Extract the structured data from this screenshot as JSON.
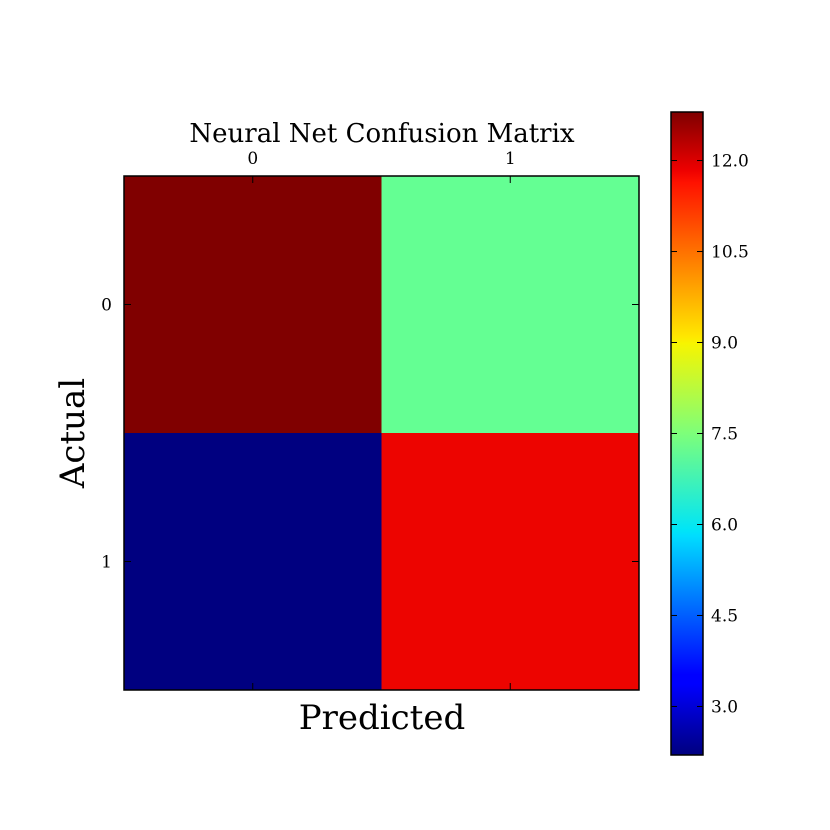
{
  "chart_data": {
    "type": "heatmap",
    "title": "Neural Net Confusion Matrix",
    "xlabel": "Predicted",
    "ylabel": "Actual",
    "x_categories": [
      "0",
      "1"
    ],
    "y_categories": [
      "0",
      "1"
    ],
    "values": [
      [
        12.8,
        7.2
      ],
      [
        2.2,
        11.8
      ]
    ],
    "colormap": "jet",
    "color_range": [
      2.2,
      12.8
    ],
    "colorbar_ticks": [
      3.0,
      4.5,
      6.0,
      7.5,
      9.0,
      10.5,
      12.0
    ],
    "colorbar_tick_labels": [
      "3.0",
      "4.5",
      "6.0",
      "7.5",
      "9.0",
      "10.5",
      "12.0"
    ],
    "x_tick_position": "top",
    "grid": false
  }
}
